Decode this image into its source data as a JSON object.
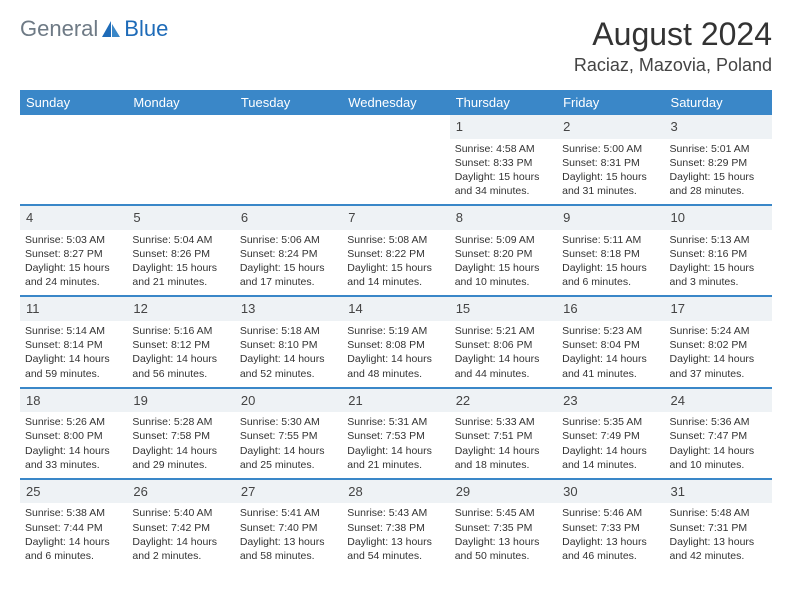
{
  "logo": {
    "general": "General",
    "blue": "Blue"
  },
  "title": "August 2024",
  "location": "Raciaz, Mazovia, Poland",
  "colors": {
    "header_blue": "#3a87c8",
    "logo_gray": "#6e7a85",
    "logo_blue": "#1e6bb8",
    "daynum_bg": "#eef2f5",
    "border": "#3a87c8"
  },
  "weekdays": [
    "Sunday",
    "Monday",
    "Tuesday",
    "Wednesday",
    "Thursday",
    "Friday",
    "Saturday"
  ],
  "weeks": [
    [
      {
        "empty": true
      },
      {
        "empty": true
      },
      {
        "empty": true
      },
      {
        "empty": true
      },
      {
        "n": "1",
        "sunrise": "Sunrise: 4:58 AM",
        "sunset": "Sunset: 8:33 PM",
        "daylight": "Daylight: 15 hours and 34 minutes."
      },
      {
        "n": "2",
        "sunrise": "Sunrise: 5:00 AM",
        "sunset": "Sunset: 8:31 PM",
        "daylight": "Daylight: 15 hours and 31 minutes."
      },
      {
        "n": "3",
        "sunrise": "Sunrise: 5:01 AM",
        "sunset": "Sunset: 8:29 PM",
        "daylight": "Daylight: 15 hours and 28 minutes."
      }
    ],
    [
      {
        "n": "4",
        "sunrise": "Sunrise: 5:03 AM",
        "sunset": "Sunset: 8:27 PM",
        "daylight": "Daylight: 15 hours and 24 minutes."
      },
      {
        "n": "5",
        "sunrise": "Sunrise: 5:04 AM",
        "sunset": "Sunset: 8:26 PM",
        "daylight": "Daylight: 15 hours and 21 minutes."
      },
      {
        "n": "6",
        "sunrise": "Sunrise: 5:06 AM",
        "sunset": "Sunset: 8:24 PM",
        "daylight": "Daylight: 15 hours and 17 minutes."
      },
      {
        "n": "7",
        "sunrise": "Sunrise: 5:08 AM",
        "sunset": "Sunset: 8:22 PM",
        "daylight": "Daylight: 15 hours and 14 minutes."
      },
      {
        "n": "8",
        "sunrise": "Sunrise: 5:09 AM",
        "sunset": "Sunset: 8:20 PM",
        "daylight": "Daylight: 15 hours and 10 minutes."
      },
      {
        "n": "9",
        "sunrise": "Sunrise: 5:11 AM",
        "sunset": "Sunset: 8:18 PM",
        "daylight": "Daylight: 15 hours and 6 minutes."
      },
      {
        "n": "10",
        "sunrise": "Sunrise: 5:13 AM",
        "sunset": "Sunset: 8:16 PM",
        "daylight": "Daylight: 15 hours and 3 minutes."
      }
    ],
    [
      {
        "n": "11",
        "sunrise": "Sunrise: 5:14 AM",
        "sunset": "Sunset: 8:14 PM",
        "daylight": "Daylight: 14 hours and 59 minutes."
      },
      {
        "n": "12",
        "sunrise": "Sunrise: 5:16 AM",
        "sunset": "Sunset: 8:12 PM",
        "daylight": "Daylight: 14 hours and 56 minutes."
      },
      {
        "n": "13",
        "sunrise": "Sunrise: 5:18 AM",
        "sunset": "Sunset: 8:10 PM",
        "daylight": "Daylight: 14 hours and 52 minutes."
      },
      {
        "n": "14",
        "sunrise": "Sunrise: 5:19 AM",
        "sunset": "Sunset: 8:08 PM",
        "daylight": "Daylight: 14 hours and 48 minutes."
      },
      {
        "n": "15",
        "sunrise": "Sunrise: 5:21 AM",
        "sunset": "Sunset: 8:06 PM",
        "daylight": "Daylight: 14 hours and 44 minutes."
      },
      {
        "n": "16",
        "sunrise": "Sunrise: 5:23 AM",
        "sunset": "Sunset: 8:04 PM",
        "daylight": "Daylight: 14 hours and 41 minutes."
      },
      {
        "n": "17",
        "sunrise": "Sunrise: 5:24 AM",
        "sunset": "Sunset: 8:02 PM",
        "daylight": "Daylight: 14 hours and 37 minutes."
      }
    ],
    [
      {
        "n": "18",
        "sunrise": "Sunrise: 5:26 AM",
        "sunset": "Sunset: 8:00 PM",
        "daylight": "Daylight: 14 hours and 33 minutes."
      },
      {
        "n": "19",
        "sunrise": "Sunrise: 5:28 AM",
        "sunset": "Sunset: 7:58 PM",
        "daylight": "Daylight: 14 hours and 29 minutes."
      },
      {
        "n": "20",
        "sunrise": "Sunrise: 5:30 AM",
        "sunset": "Sunset: 7:55 PM",
        "daylight": "Daylight: 14 hours and 25 minutes."
      },
      {
        "n": "21",
        "sunrise": "Sunrise: 5:31 AM",
        "sunset": "Sunset: 7:53 PM",
        "daylight": "Daylight: 14 hours and 21 minutes."
      },
      {
        "n": "22",
        "sunrise": "Sunrise: 5:33 AM",
        "sunset": "Sunset: 7:51 PM",
        "daylight": "Daylight: 14 hours and 18 minutes."
      },
      {
        "n": "23",
        "sunrise": "Sunrise: 5:35 AM",
        "sunset": "Sunset: 7:49 PM",
        "daylight": "Daylight: 14 hours and 14 minutes."
      },
      {
        "n": "24",
        "sunrise": "Sunrise: 5:36 AM",
        "sunset": "Sunset: 7:47 PM",
        "daylight": "Daylight: 14 hours and 10 minutes."
      }
    ],
    [
      {
        "n": "25",
        "sunrise": "Sunrise: 5:38 AM",
        "sunset": "Sunset: 7:44 PM",
        "daylight": "Daylight: 14 hours and 6 minutes."
      },
      {
        "n": "26",
        "sunrise": "Sunrise: 5:40 AM",
        "sunset": "Sunset: 7:42 PM",
        "daylight": "Daylight: 14 hours and 2 minutes."
      },
      {
        "n": "27",
        "sunrise": "Sunrise: 5:41 AM",
        "sunset": "Sunset: 7:40 PM",
        "daylight": "Daylight: 13 hours and 58 minutes."
      },
      {
        "n": "28",
        "sunrise": "Sunrise: 5:43 AM",
        "sunset": "Sunset: 7:38 PM",
        "daylight": "Daylight: 13 hours and 54 minutes."
      },
      {
        "n": "29",
        "sunrise": "Sunrise: 5:45 AM",
        "sunset": "Sunset: 7:35 PM",
        "daylight": "Daylight: 13 hours and 50 minutes."
      },
      {
        "n": "30",
        "sunrise": "Sunrise: 5:46 AM",
        "sunset": "Sunset: 7:33 PM",
        "daylight": "Daylight: 13 hours and 46 minutes."
      },
      {
        "n": "31",
        "sunrise": "Sunrise: 5:48 AM",
        "sunset": "Sunset: 7:31 PM",
        "daylight": "Daylight: 13 hours and 42 minutes."
      }
    ]
  ]
}
